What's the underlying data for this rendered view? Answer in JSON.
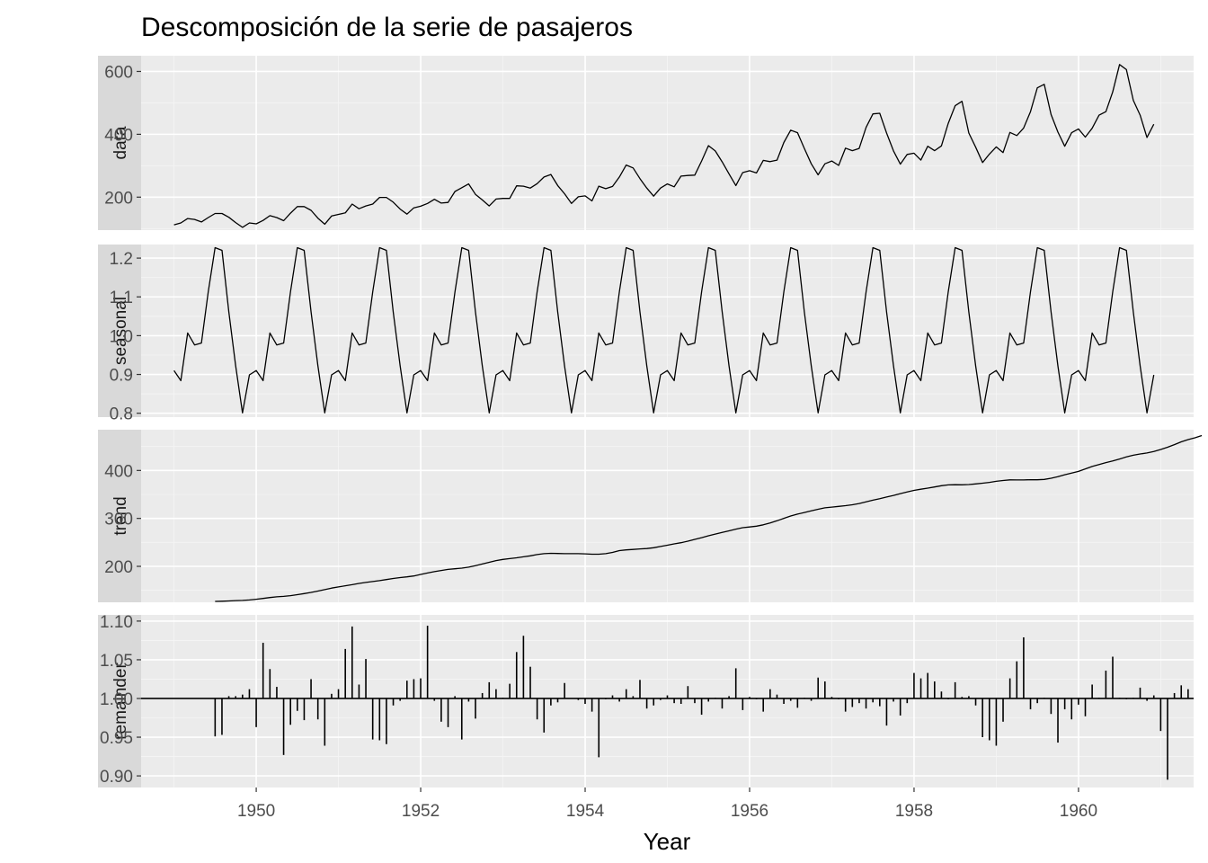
{
  "chart_data": {
    "type": "line",
    "title": "Descomposición de la serie de pasajeros",
    "xlabel": "Year",
    "xlim": [
      1948.6,
      1961.4
    ],
    "x_ticks": [
      1950,
      1952,
      1954,
      1956,
      1958,
      1960
    ],
    "x_tick_labels": [
      "1950",
      "1952",
      "1954",
      "1956",
      "1958",
      "1960"
    ],
    "grid": true,
    "start": 1949.0,
    "step": 0.08333,
    "panels": [
      {
        "label": "data",
        "kind": "line",
        "ylim": [
          95,
          650
        ],
        "y_ticks": [
          200,
          400,
          600
        ],
        "y_tick_labels": [
          "200",
          "400",
          "600"
        ],
        "values": [
          112,
          118,
          132,
          129,
          121,
          135,
          148,
          148,
          136,
          119,
          104,
          118,
          115,
          126,
          141,
          135,
          125,
          149,
          170,
          170,
          158,
          133,
          114,
          140,
          145,
          150,
          178,
          163,
          172,
          178,
          199,
          199,
          184,
          162,
          146,
          166,
          171,
          180,
          193,
          181,
          183,
          218,
          230,
          242,
          209,
          191,
          172,
          194,
          196,
          196,
          236,
          235,
          229,
          243,
          264,
          272,
          237,
          211,
          180,
          201,
          204,
          188,
          235,
          227,
          234,
          264,
          302,
          293,
          259,
          229,
          203,
          229,
          242,
          233,
          267,
          269,
          270,
          315,
          364,
          347,
          312,
          274,
          237,
          278,
          284,
          277,
          317,
          313,
          318,
          374,
          413,
          405,
          355,
          306,
          271,
          306,
          315,
          301,
          356,
          348,
          355,
          422,
          465,
          467,
          404,
          347,
          305,
          336,
          340,
          318,
          362,
          348,
          363,
          435,
          491,
          505,
          404,
          359,
          310,
          337,
          360,
          342,
          406,
          396,
          420,
          472,
          548,
          559,
          463,
          407,
          362,
          405,
          417,
          391,
          419,
          461,
          472,
          535,
          622,
          606,
          508,
          461,
          390,
          432
        ]
      },
      {
        "label": "seasonal",
        "kind": "line",
        "ylim": [
          0.79,
          1.235
        ],
        "y_ticks": [
          0.8,
          0.9,
          1.0,
          1.1,
          1.2
        ],
        "y_tick_labels": [
          "0.8",
          "0.9",
          "1.0",
          "1.1",
          "1.2"
        ],
        "pattern": [
          0.91,
          0.884,
          1.007,
          0.976,
          0.981,
          1.113,
          1.227,
          1.22,
          1.061,
          0.922,
          0.801,
          0.899
        ],
        "repeat": 12
      },
      {
        "label": "trend",
        "kind": "line",
        "ylim": [
          125,
          485
        ],
        "y_ticks": [
          200,
          300,
          400
        ],
        "y_tick_labels": [
          "200",
          "300",
          "400"
        ],
        "offset": 6,
        "values": [
          126.8,
          127.3,
          127.9,
          128.6,
          129.0,
          129.8,
          131.3,
          133.1,
          134.9,
          136.4,
          137.4,
          138.8,
          140.9,
          143.2,
          145.7,
          148.4,
          151.5,
          154.7,
          157.1,
          159.5,
          161.8,
          164.4,
          166.5,
          168.4,
          170.2,
          172.4,
          174.6,
          176.5,
          178.0,
          180.0,
          183.1,
          186.2,
          189.0,
          191.3,
          193.6,
          194.9,
          196.3,
          198.4,
          201.3,
          204.8,
          208.5,
          212.0,
          214.5,
          216.2,
          217.9,
          219.8,
          222.0,
          224.6,
          226.5,
          227.2,
          226.9,
          226.5,
          226.5,
          226.5,
          226.0,
          225.3,
          225.3,
          226.5,
          229.0,
          232.8,
          234.4,
          235.3,
          236.4,
          237.2,
          238.8,
          241.5,
          244.1,
          246.9,
          249.4,
          252.5,
          256.2,
          259.9,
          263.8,
          267.4,
          270.6,
          274.0,
          277.7,
          280.6,
          282.2,
          283.9,
          286.7,
          290.3,
          295.0,
          300.1,
          305.0,
          309.0,
          312.3,
          315.8,
          319.0,
          322.0,
          323.6,
          325.1,
          326.6,
          328.4,
          331.1,
          334.6,
          338.0,
          341.0,
          344.6,
          348.0,
          351.7,
          355.3,
          358.4,
          360.8,
          363.2,
          365.6,
          368.2,
          369.8,
          370.3,
          370.0,
          370.6,
          372.0,
          373.4,
          375.2,
          377.3,
          379.1,
          380.3,
          380.1,
          380.1,
          380.8,
          380.5,
          381.3,
          383.7,
          386.9,
          391.0,
          394.4,
          398.0,
          403.2,
          408.3,
          412.5,
          416.3,
          419.8,
          423.9,
          428.1,
          431.8,
          434.4,
          436.5,
          439.6,
          443.8,
          448.5,
          453.9,
          459.7,
          464.3,
          468.2,
          472.8
        ]
      },
      {
        "label": "remainder",
        "kind": "bar",
        "ylim": [
          0.885,
          1.108
        ],
        "y_ticks": [
          0.9,
          0.95,
          1.0,
          1.05,
          1.1
        ],
        "y_tick_labels": [
          "0.90",
          "0.95",
          "1.00",
          "1.05",
          "1.10"
        ],
        "baseline": 1.0,
        "offset": 6,
        "values": [
          0.951,
          0.953,
          1.003,
          1.003,
          1.005,
          1.012,
          0.963,
          1.072,
          1.038,
          1.015,
          0.927,
          0.966,
          0.984,
          0.972,
          1.025,
          0.973,
          0.939,
          1.006,
          1.012,
          1.064,
          1.093,
          1.018,
          1.051,
          0.947,
          0.946,
          0.941,
          0.991,
          0.997,
          1.023,
          1.025,
          1.026,
          1.094,
          0.997,
          0.97,
          0.963,
          1.003,
          0.947,
          0.996,
          0.974,
          1.007,
          1.021,
          1.012,
          1.001,
          1.019,
          1.06,
          1.081,
          1.041,
          0.973,
          0.956,
          0.991,
          0.995,
          1.02,
          1.0,
          0.998,
          0.993,
          0.983,
          0.924,
          0.999,
          1.004,
          0.996,
          1.012,
          1.003,
          1.024,
          0.987,
          0.991,
          0.998,
          1.004,
          0.994,
          0.993,
          1.016,
          0.994,
          0.979,
          0.996,
          1.001,
          0.987,
          1.003,
          1.039,
          0.985,
          1.002,
          0.999,
          0.983,
          1.012,
          1.005,
          0.993,
          0.997,
          0.988,
          1.001,
          0.997,
          1.027,
          1.022,
          1.002,
          0.999,
          0.983,
          0.989,
          0.994,
          0.987,
          0.995,
          0.99,
          0.965,
          0.996,
          0.978,
          0.994,
          1.033,
          1.026,
          1.033,
          1.022,
          1.009,
          0.999,
          1.021,
          1.002,
          1.003,
          0.991,
          0.95,
          0.946,
          0.939,
          0.97,
          1.026,
          1.048,
          1.079,
          0.986,
          0.994,
          1.001,
          0.98,
          0.943,
          0.986,
          0.973,
          0.992,
          0.977,
          1.018,
          1.001,
          1.036,
          1.054,
          1.001,
          0.999,
          1.001,
          1.014,
          0.997,
          1.004,
          0.958,
          0.895,
          1.007,
          1.017,
          1.012
        ]
      }
    ]
  }
}
